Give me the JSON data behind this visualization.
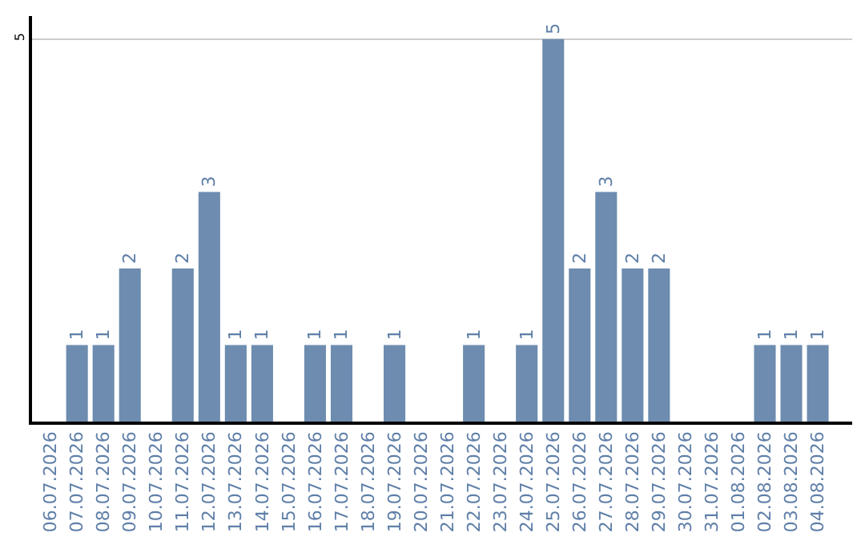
{
  "chart_data": {
    "type": "bar",
    "categories": [
      "06.07.2026",
      "07.07.2026",
      "08.07.2026",
      "09.07.2026",
      "10.07.2026",
      "11.07.2026",
      "12.07.2026",
      "13.07.2026",
      "14.07.2026",
      "15.07.2026",
      "16.07.2026",
      "17.07.2026",
      "18.07.2026",
      "19.07.2026",
      "20.07.2026",
      "21.07.2026",
      "22.07.2026",
      "23.07.2026",
      "24.07.2026",
      "25.07.2026",
      "26.07.2026",
      "27.07.2026",
      "28.07.2026",
      "29.07.2026",
      "30.07.2026",
      "31.07.2026",
      "01.08.2026",
      "02.08.2026",
      "03.08.2026",
      "04.08.2026"
    ],
    "values": [
      0,
      1,
      1,
      2,
      0,
      2,
      3,
      1,
      1,
      0,
      1,
      1,
      0,
      1,
      0,
      0,
      1,
      0,
      1,
      5,
      2,
      3,
      2,
      2,
      0,
      0,
      0,
      1,
      1,
      1
    ],
    "value_labels": [
      null,
      "1",
      "1",
      "2",
      null,
      "2",
      "3",
      "1",
      "1",
      null,
      "1",
      "1",
      null,
      "1",
      null,
      null,
      "1",
      null,
      "1",
      "5",
      "2",
      "3",
      "2",
      "2",
      null,
      null,
      null,
      "1",
      "1",
      "1"
    ],
    "color": "#6d8caf",
    "ylim": [
      0,
      5.3
    ],
    "yticks": [
      5
    ],
    "grid": "y",
    "legend": false
  }
}
